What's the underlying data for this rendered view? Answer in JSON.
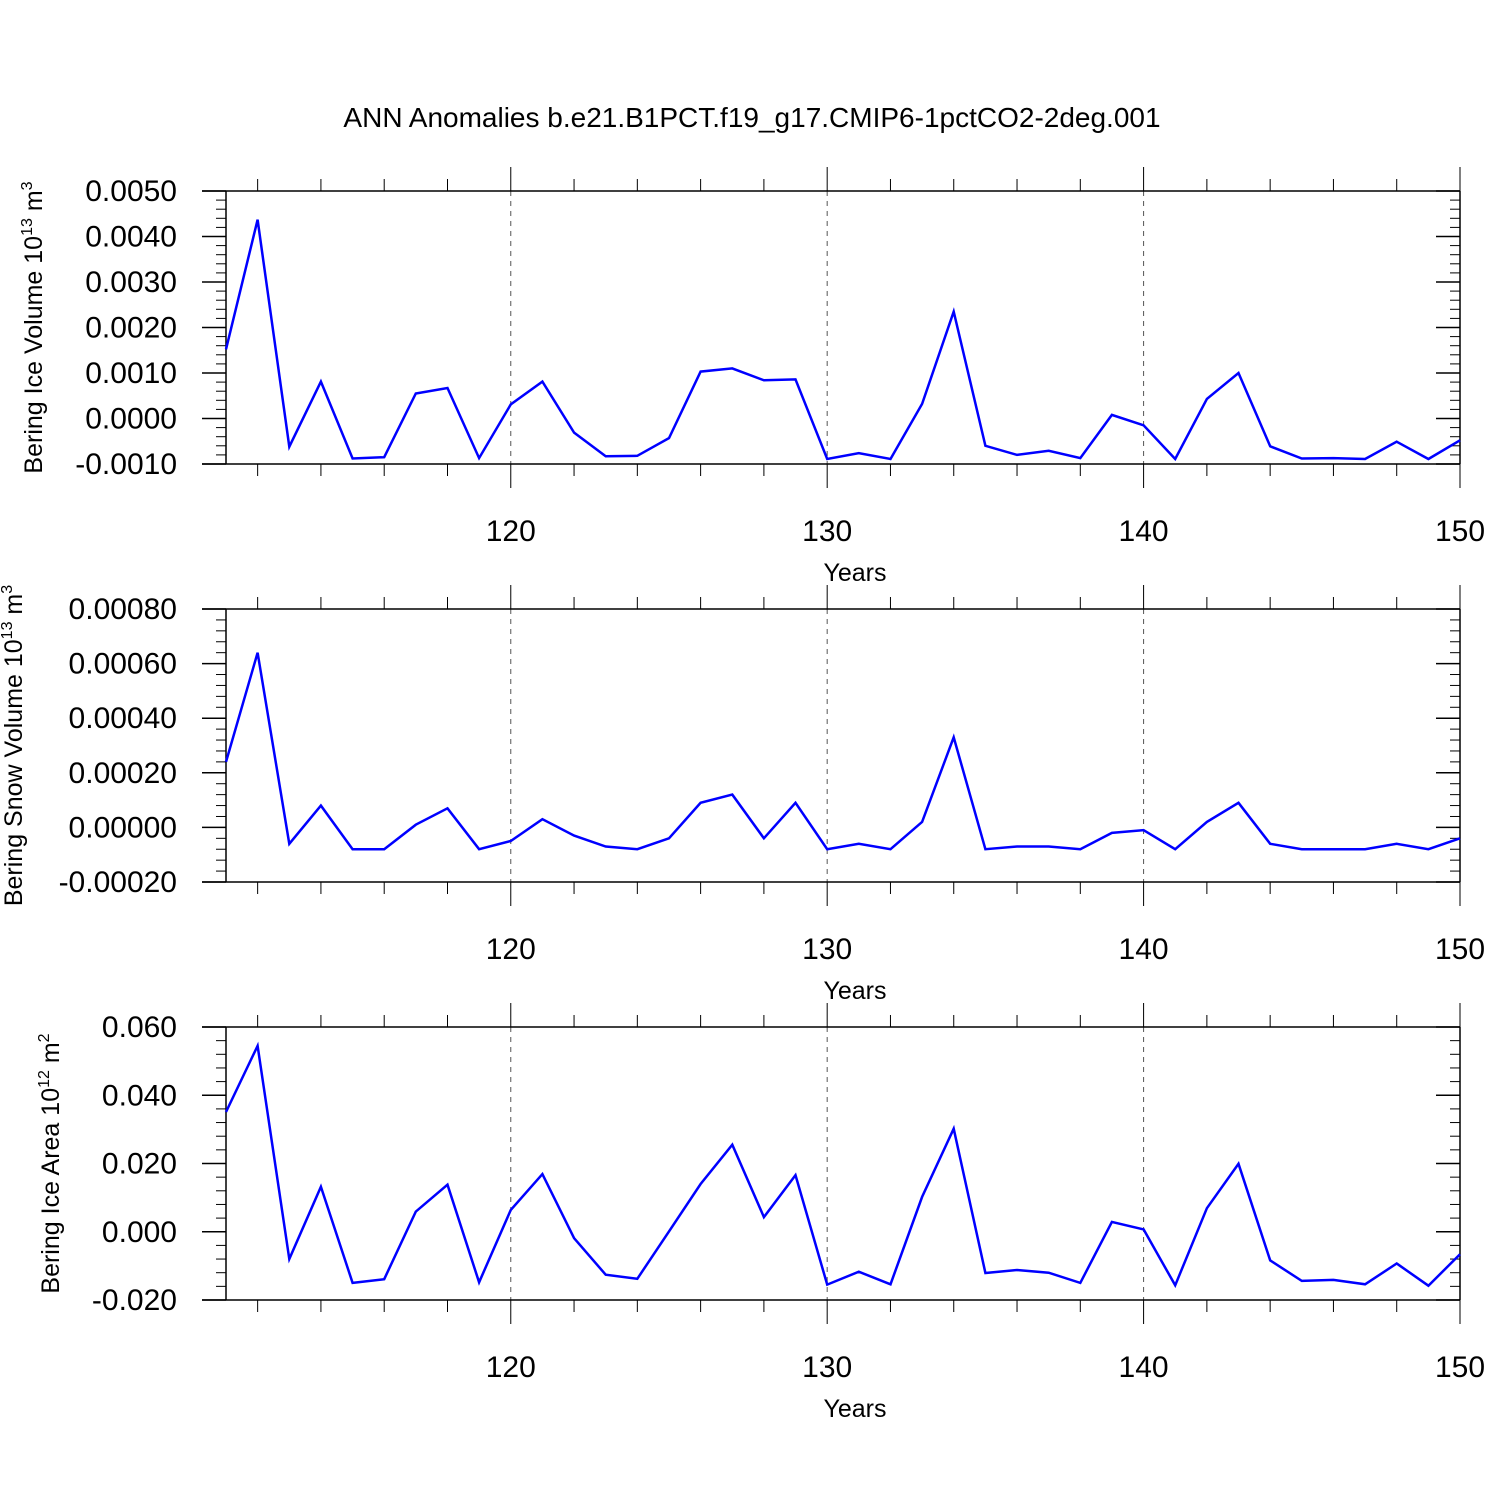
{
  "chart_data": {
    "title": "ANN Anomalies b.e21.B1PCT.f19_g17.CMIP6-1pctCO2-2deg.001",
    "line_color": "#0000ff",
    "panels": [
      {
        "type": "line",
        "ylabel": "Bering Ice Volume 10",
        "ylabel_exponent": "13",
        "ylabel_unit": "m",
        "ylabel_unit_exponent": "3",
        "xlabel": "Years",
        "xlim": [
          111,
          150
        ],
        "ylim": [
          -0.001,
          0.005
        ],
        "x_ticks": [
          120,
          130,
          140,
          150
        ],
        "x_tick_labels": [
          "120",
          "130",
          "140",
          "150"
        ],
        "y_ticks": [
          -0.001,
          0,
          0.001,
          0.002,
          0.003,
          0.004,
          0.005
        ],
        "y_tick_labels": [
          "-0.0010",
          "0.0000",
          "0.0010",
          "0.0020",
          "0.0030",
          "0.0040",
          "0.0050"
        ],
        "grid": "vertical dashed at major x ticks",
        "x": [
          111,
          112,
          113,
          114,
          115,
          116,
          117,
          118,
          119,
          120,
          121,
          122,
          123,
          124,
          125,
          126,
          127,
          128,
          129,
          130,
          131,
          132,
          133,
          134,
          135,
          136,
          137,
          138,
          139,
          140,
          141,
          142,
          143,
          144,
          145,
          146,
          147,
          148,
          149,
          150
        ],
        "values": [
          0.00152,
          0.00437,
          -0.00062,
          0.00081,
          -0.00088,
          -0.00085,
          0.00055,
          0.00067,
          -0.00087,
          0.00031,
          0.00081,
          -0.00031,
          -0.00083,
          -0.00082,
          -0.00043,
          0.00103,
          0.0011,
          0.00084,
          0.00086,
          -0.00089,
          -0.00076,
          -0.00089,
          0.00032,
          0.00235,
          -0.0006,
          -0.0008,
          -0.00071,
          -0.00087,
          8e-05,
          -0.00015,
          -0.00089,
          0.00043,
          0.001,
          -0.00061,
          -0.00088,
          -0.00087,
          -0.00089,
          -0.00051,
          -0.00089,
          -0.00048
        ]
      },
      {
        "type": "line",
        "ylabel": "Bering Snow Volume 10",
        "ylabel_exponent": "13",
        "ylabel_unit": "m",
        "ylabel_unit_exponent": "3",
        "xlabel": "Years",
        "xlim": [
          111,
          150
        ],
        "ylim": [
          -0.0002,
          0.0008
        ],
        "x_ticks": [
          120,
          130,
          140,
          150
        ],
        "x_tick_labels": [
          "120",
          "130",
          "140",
          "150"
        ],
        "y_ticks": [
          -0.0002,
          0,
          0.0002,
          0.0004,
          0.0006,
          0.0008
        ],
        "y_tick_labels": [
          "-0.00020",
          "0.00000",
          "0.00020",
          "0.00040",
          "0.00060",
          "0.00080"
        ],
        "grid": "vertical dashed at major x ticks",
        "x": [
          111,
          112,
          113,
          114,
          115,
          116,
          117,
          118,
          119,
          120,
          121,
          122,
          123,
          124,
          125,
          126,
          127,
          128,
          129,
          130,
          131,
          132,
          133,
          134,
          135,
          136,
          137,
          138,
          139,
          140,
          141,
          142,
          143,
          144,
          145,
          146,
          147,
          148,
          149,
          150
        ],
        "values": [
          0.00024,
          0.00064,
          -6e-05,
          8e-05,
          -8e-05,
          -8e-05,
          1e-05,
          7e-05,
          -8e-05,
          -5e-05,
          3e-05,
          -3e-05,
          -7e-05,
          -8e-05,
          -4e-05,
          9e-05,
          0.00012,
          -4e-05,
          9e-05,
          -8e-05,
          -6e-05,
          -8e-05,
          2e-05,
          0.00033,
          -8e-05,
          -7e-05,
          -7e-05,
          -8e-05,
          -2e-05,
          -1e-05,
          -8e-05,
          2e-05,
          9e-05,
          -6e-05,
          -8e-05,
          -8e-05,
          -8e-05,
          -6e-05,
          -8e-05,
          -4e-05
        ]
      },
      {
        "type": "line",
        "ylabel": "Bering Ice Area 10",
        "ylabel_exponent": "12",
        "ylabel_unit": "m",
        "ylabel_unit_exponent": "2",
        "xlabel": "Years",
        "xlim": [
          111,
          150
        ],
        "ylim": [
          -0.02,
          0.06
        ],
        "x_ticks": [
          120,
          130,
          140,
          150
        ],
        "x_tick_labels": [
          "120",
          "130",
          "140",
          "150"
        ],
        "y_ticks": [
          -0.02,
          0,
          0.02,
          0.04,
          0.06
        ],
        "y_tick_labels": [
          "-0.020",
          "0.000",
          "0.020",
          "0.040",
          "0.060"
        ],
        "grid": "vertical dashed at major x ticks",
        "x": [
          111,
          112,
          113,
          114,
          115,
          116,
          117,
          118,
          119,
          120,
          121,
          122,
          123,
          124,
          125,
          126,
          127,
          128,
          129,
          130,
          131,
          132,
          133,
          134,
          135,
          136,
          137,
          138,
          139,
          140,
          141,
          142,
          143,
          144,
          145,
          146,
          147,
          148,
          149,
          150
        ],
        "values": [
          0.0351,
          0.0545,
          -0.008,
          0.0132,
          -0.015,
          -0.0139,
          0.0059,
          0.0138,
          -0.0148,
          0.0064,
          0.0169,
          -0.0019,
          -0.0126,
          -0.0138,
          0.0001,
          0.014,
          0.0255,
          0.0043,
          0.0166,
          -0.0155,
          -0.0117,
          -0.0154,
          0.0102,
          0.0302,
          -0.0121,
          -0.0112,
          -0.012,
          -0.015,
          0.0029,
          0.0007,
          -0.0157,
          0.0069,
          0.0199,
          -0.0084,
          -0.0144,
          -0.0141,
          -0.0154,
          -0.0093,
          -0.0158,
          -0.0066
        ]
      }
    ]
  }
}
